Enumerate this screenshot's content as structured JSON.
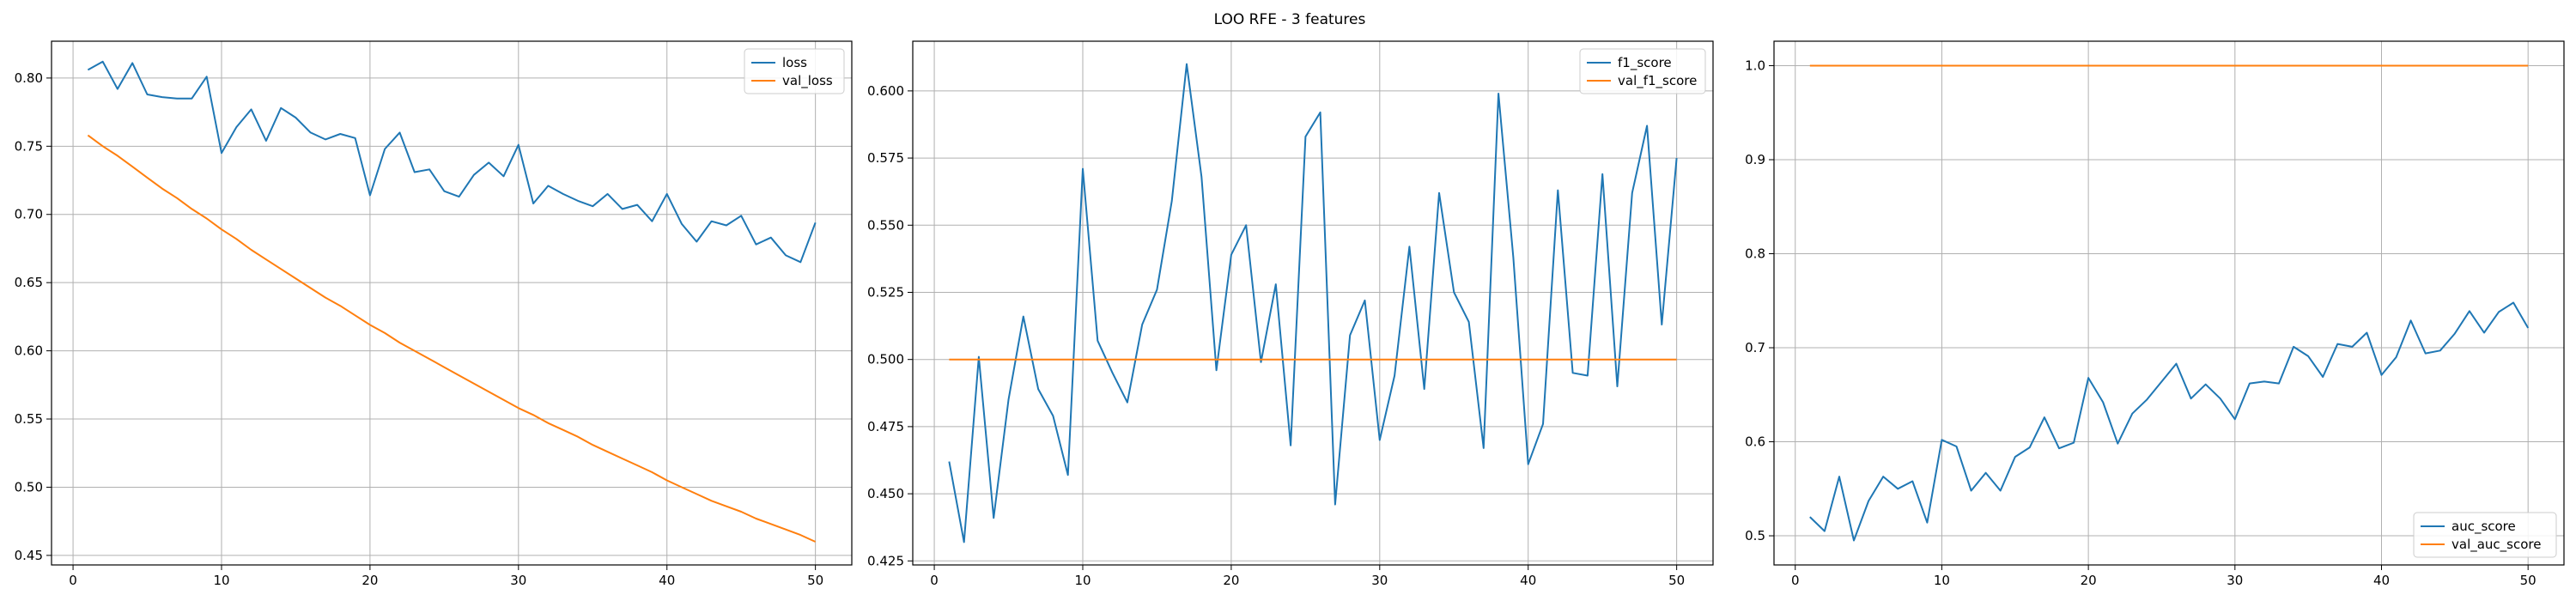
{
  "figure": {
    "title": "LOO RFE - 3 features"
  },
  "colors": {
    "series1": "#1f77b4",
    "series2": "#ff7f0e",
    "grid": "#b0b0b0",
    "axis": "#000000"
  },
  "chart_data": [
    {
      "type": "line",
      "title": "",
      "xlabel": "",
      "ylabel": "",
      "xlim": [
        -1.45,
        52.45
      ],
      "ylim": [
        0.443,
        0.827
      ],
      "xticks": [
        0,
        10,
        20,
        30,
        40,
        50
      ],
      "xtick_labels": [
        "0",
        "10",
        "20",
        "30",
        "40",
        "50"
      ],
      "yticks": [
        0.45,
        0.5,
        0.55,
        0.6,
        0.65,
        0.7,
        0.75,
        0.8
      ],
      "ytick_labels": [
        "0.45",
        "0.50",
        "0.55",
        "0.60",
        "0.65",
        "0.70",
        "0.75",
        "0.80"
      ],
      "grid": true,
      "legend_position": "top-right",
      "x": [
        1,
        2,
        3,
        4,
        5,
        6,
        7,
        8,
        9,
        10,
        11,
        12,
        13,
        14,
        15,
        16,
        17,
        18,
        19,
        20,
        21,
        22,
        23,
        24,
        25,
        26,
        27,
        28,
        29,
        30,
        31,
        32,
        33,
        34,
        35,
        36,
        37,
        38,
        39,
        40,
        41,
        42,
        43,
        44,
        45,
        46,
        47,
        48,
        49,
        50
      ],
      "series": [
        {
          "name": "loss",
          "values": [
            0.806,
            0.812,
            0.792,
            0.811,
            0.788,
            0.786,
            0.785,
            0.785,
            0.801,
            0.745,
            0.764,
            0.777,
            0.754,
            0.778,
            0.771,
            0.76,
            0.755,
            0.759,
            0.756,
            0.714,
            0.748,
            0.76,
            0.731,
            0.733,
            0.717,
            0.713,
            0.729,
            0.738,
            0.728,
            0.751,
            0.708,
            0.721,
            0.715,
            0.71,
            0.706,
            0.715,
            0.704,
            0.707,
            0.695,
            0.715,
            0.693,
            0.68,
            0.695,
            0.692,
            0.699,
            0.678,
            0.683,
            0.67,
            0.665,
            0.694
          ]
        },
        {
          "name": "val_loss",
          "values": [
            0.758,
            0.75,
            0.743,
            0.735,
            0.727,
            0.719,
            0.712,
            0.704,
            0.697,
            0.689,
            0.682,
            0.674,
            0.667,
            0.66,
            0.653,
            0.646,
            0.639,
            0.633,
            0.626,
            0.619,
            0.613,
            0.606,
            0.6,
            0.594,
            0.588,
            0.582,
            0.576,
            0.57,
            0.564,
            0.558,
            0.553,
            0.547,
            0.542,
            0.537,
            0.531,
            0.526,
            0.521,
            0.516,
            0.511,
            0.505,
            0.5,
            0.495,
            0.49,
            0.486,
            0.482,
            0.477,
            0.473,
            0.469,
            0.465,
            0.46
          ]
        }
      ]
    },
    {
      "type": "line",
      "title": "",
      "xlabel": "",
      "ylabel": "",
      "xlim": [
        -1.45,
        52.45
      ],
      "ylim": [
        0.4235,
        0.6185
      ],
      "xticks": [
        0,
        10,
        20,
        30,
        40,
        50
      ],
      "xtick_labels": [
        "0",
        "10",
        "20",
        "30",
        "40",
        "50"
      ],
      "yticks": [
        0.425,
        0.45,
        0.475,
        0.5,
        0.525,
        0.55,
        0.575,
        0.6
      ],
      "ytick_labels": [
        "0.425",
        "0.450",
        "0.475",
        "0.500",
        "0.525",
        "0.550",
        "0.575",
        "0.600"
      ],
      "grid": true,
      "legend_position": "top-right",
      "x": [
        1,
        2,
        3,
        4,
        5,
        6,
        7,
        8,
        9,
        10,
        11,
        12,
        13,
        14,
        15,
        16,
        17,
        18,
        19,
        20,
        21,
        22,
        23,
        24,
        25,
        26,
        27,
        28,
        29,
        30,
        31,
        32,
        33,
        34,
        35,
        36,
        37,
        38,
        39,
        40,
        41,
        42,
        43,
        44,
        45,
        46,
        47,
        48,
        49,
        50
      ],
      "series": [
        {
          "name": "f1_score",
          "values": [
            0.462,
            0.432,
            0.501,
            0.441,
            0.485,
            0.516,
            0.489,
            0.479,
            0.457,
            0.571,
            0.507,
            0.495,
            0.484,
            0.513,
            0.526,
            0.559,
            0.61,
            0.568,
            0.496,
            0.539,
            0.55,
            0.499,
            0.528,
            0.468,
            0.583,
            0.592,
            0.446,
            0.509,
            0.522,
            0.47,
            0.494,
            0.542,
            0.489,
            0.562,
            0.525,
            0.514,
            0.467,
            0.599,
            0.538,
            0.461,
            0.476,
            0.563,
            0.495,
            0.494,
            0.569,
            0.49,
            0.562,
            0.587,
            0.513,
            0.575
          ]
        },
        {
          "name": "val_f1_score",
          "values": [
            0.5,
            0.5,
            0.5,
            0.5,
            0.5,
            0.5,
            0.5,
            0.5,
            0.5,
            0.5,
            0.5,
            0.5,
            0.5,
            0.5,
            0.5,
            0.5,
            0.5,
            0.5,
            0.5,
            0.5,
            0.5,
            0.5,
            0.5,
            0.5,
            0.5,
            0.5,
            0.5,
            0.5,
            0.5,
            0.5,
            0.5,
            0.5,
            0.5,
            0.5,
            0.5,
            0.5,
            0.5,
            0.5,
            0.5,
            0.5,
            0.5,
            0.5,
            0.5,
            0.5,
            0.5,
            0.5,
            0.5,
            0.5,
            0.5,
            0.5
          ]
        }
      ]
    },
    {
      "type": "line",
      "title": "",
      "xlabel": "",
      "ylabel": "",
      "xlim": [
        -1.45,
        52.45
      ],
      "ylim": [
        0.469,
        1.026
      ],
      "xticks": [
        0,
        10,
        20,
        30,
        40,
        50
      ],
      "xtick_labels": [
        "0",
        "10",
        "20",
        "30",
        "40",
        "50"
      ],
      "yticks": [
        0.5,
        0.6,
        0.7,
        0.8,
        0.9,
        1.0
      ],
      "ytick_labels": [
        "0.5",
        "0.6",
        "0.7",
        "0.8",
        "0.9",
        "1.0"
      ],
      "grid": true,
      "legend_position": "bottom-right",
      "x": [
        1,
        2,
        3,
        4,
        5,
        6,
        7,
        8,
        9,
        10,
        11,
        12,
        13,
        14,
        15,
        16,
        17,
        18,
        19,
        20,
        21,
        22,
        23,
        24,
        25,
        26,
        27,
        28,
        29,
        30,
        31,
        32,
        33,
        34,
        35,
        36,
        37,
        38,
        39,
        40,
        41,
        42,
        43,
        44,
        45,
        46,
        47,
        48,
        49,
        50
      ],
      "series": [
        {
          "name": "auc_score",
          "values": [
            0.52,
            0.505,
            0.563,
            0.495,
            0.537,
            0.563,
            0.55,
            0.558,
            0.514,
            0.602,
            0.595,
            0.548,
            0.567,
            0.548,
            0.584,
            0.594,
            0.626,
            0.593,
            0.599,
            0.668,
            0.642,
            0.598,
            0.63,
            0.645,
            0.664,
            0.683,
            0.646,
            0.661,
            0.646,
            0.624,
            0.662,
            0.664,
            0.662,
            0.701,
            0.691,
            0.669,
            0.704,
            0.701,
            0.716,
            0.671,
            0.69,
            0.729,
            0.694,
            0.697,
            0.715,
            0.739,
            0.716,
            0.738,
            0.748,
            0.721
          ]
        },
        {
          "name": "val_auc_score",
          "values": [
            1.0,
            1.0,
            1.0,
            1.0,
            1.0,
            1.0,
            1.0,
            1.0,
            1.0,
            1.0,
            1.0,
            1.0,
            1.0,
            1.0,
            1.0,
            1.0,
            1.0,
            1.0,
            1.0,
            1.0,
            1.0,
            1.0,
            1.0,
            1.0,
            1.0,
            1.0,
            1.0,
            1.0,
            1.0,
            1.0,
            1.0,
            1.0,
            1.0,
            1.0,
            1.0,
            1.0,
            1.0,
            1.0,
            1.0,
            1.0,
            1.0,
            1.0,
            1.0,
            1.0,
            1.0,
            1.0,
            1.0,
            1.0,
            1.0,
            1.0
          ]
        }
      ]
    }
  ]
}
